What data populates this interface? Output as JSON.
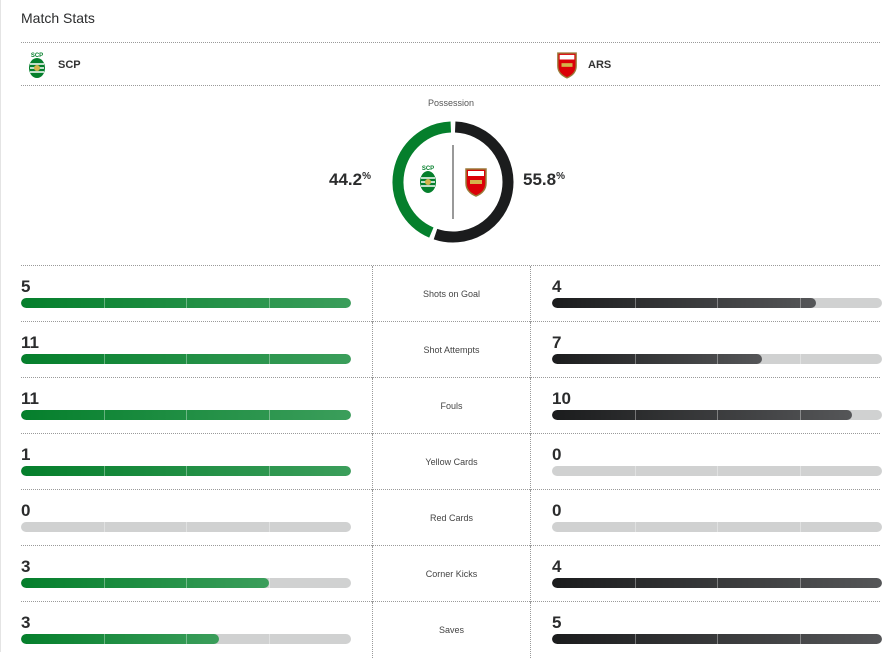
{
  "title": "Match Stats",
  "home": {
    "abbr": "SCP",
    "color": "#057f2c",
    "possession": "44.2",
    "possession_value": 44.2
  },
  "away": {
    "abbr": "ARS",
    "color": "#1b1c1d",
    "possession": "55.8",
    "possession_value": 55.8
  },
  "possession_label": "Possession",
  "percent_sign": "%",
  "stats": [
    {
      "label": "Shots on Goal",
      "home": "5",
      "away": "4",
      "home_fill": 1,
      "away_fill": 0.8
    },
    {
      "label": "Shot Attempts",
      "home": "11",
      "away": "7",
      "home_fill": 1,
      "away_fill": 0.636
    },
    {
      "label": "Fouls",
      "home": "11",
      "away": "10",
      "home_fill": 1,
      "away_fill": 0.909
    },
    {
      "label": "Yellow Cards",
      "home": "1",
      "away": "0",
      "home_fill": 1,
      "away_fill": 0
    },
    {
      "label": "Red Cards",
      "home": "0",
      "away": "0",
      "home_fill": 0,
      "away_fill": 0
    },
    {
      "label": "Corner Kicks",
      "home": "3",
      "away": "4",
      "home_fill": 0.75,
      "away_fill": 1
    },
    {
      "label": "Saves",
      "home": "3",
      "away": "5",
      "home_fill": 0.6,
      "away_fill": 1
    }
  ]
}
